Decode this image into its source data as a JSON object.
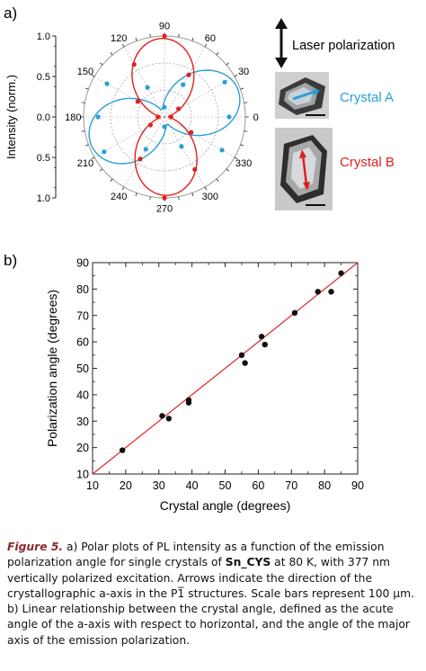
{
  "panel_a_label": "a)",
  "panel_b_label": "b)",
  "legend": {
    "polarization_label": "Laser polarization",
    "crystal_a_label": "Crystal A",
    "crystal_b_label": "Crystal B",
    "crystal_a_color": "#2a9fd6",
    "crystal_b_color": "#e02020"
  },
  "caption": {
    "figure_label": "Figure 5.",
    "text_1": " a) Polar plots of PL intensity as a function of the emission polarization angle for single crystals of ",
    "compound": "Sn_CYS",
    "text_2": " at 80 K, with 377 nm vertically polarized excitation. Arrows indicate the direction of the crystallographic a-axis in the P1̅ structures. Scale bars represent 100 μm. b) Linear relationship between the crystal angle, defined as the acute angle of the a-axis with respect to horizontal, and the angle of the major axis of the emission polarization."
  },
  "chart_data": [
    {
      "type": "polar",
      "ylabel": "Intensity (norm.)",
      "radial_ticks": [
        "1.0",
        "0.5",
        "0.0",
        "0.5",
        "1.0"
      ],
      "angle_ticks": [
        0,
        30,
        60,
        90,
        120,
        150,
        180,
        210,
        240,
        270,
        300,
        330
      ],
      "grid": true,
      "series": [
        {
          "name": "Crystal A",
          "color": "#2a9fd6",
          "points": [
            {
              "angle": 0,
              "r": 0.8
            },
            {
              "angle": 30,
              "r": 0.86
            },
            {
              "angle": 60,
              "r": 0.46
            },
            {
              "angle": 90,
              "r": 0.12
            },
            {
              "angle": 120,
              "r": 0.42
            },
            {
              "angle": 150,
              "r": 0.82
            },
            {
              "angle": 180,
              "r": 0.82
            },
            {
              "angle": 210,
              "r": 0.86
            },
            {
              "angle": 240,
              "r": 0.46
            },
            {
              "angle": 270,
              "r": 0.12
            },
            {
              "angle": 300,
              "r": 0.42
            },
            {
              "angle": 330,
              "r": 0.82
            }
          ],
          "fit_axis_deg": 20,
          "fit_min": 0.1
        },
        {
          "name": "Crystal B",
          "color": "#e02020",
          "points": [
            {
              "angle": 0,
              "r": 0.08
            },
            {
              "angle": 30,
              "r": 0.2
            },
            {
              "angle": 60,
              "r": 0.6
            },
            {
              "angle": 90,
              "r": 1.0
            },
            {
              "angle": 120,
              "r": 0.75
            },
            {
              "angle": 150,
              "r": 0.38
            },
            {
              "angle": 180,
              "r": 0.08
            },
            {
              "angle": 210,
              "r": 0.2
            },
            {
              "angle": 240,
              "r": 0.6
            },
            {
              "angle": 270,
              "r": 1.0
            },
            {
              "angle": 300,
              "r": 0.75
            },
            {
              "angle": 330,
              "r": 0.38
            }
          ],
          "fit_axis_deg": 92,
          "fit_min": 0.05
        }
      ]
    },
    {
      "type": "scatter",
      "xlabel": "Crystal angle (degrees)",
      "ylabel": "Polarization angle (degrees)",
      "xlim": [
        10,
        90
      ],
      "ylim": [
        10,
        90
      ],
      "xticks": [
        10,
        20,
        30,
        40,
        50,
        60,
        70,
        80,
        90
      ],
      "yticks": [
        10,
        20,
        30,
        40,
        50,
        60,
        70,
        80,
        90
      ],
      "fit_line": {
        "color": "#e02020",
        "from": [
          10,
          10
        ],
        "to": [
          90,
          90
        ]
      },
      "points": [
        {
          "x": 19,
          "y": 19
        },
        {
          "x": 31,
          "y": 32
        },
        {
          "x": 33,
          "y": 31
        },
        {
          "x": 39,
          "y": 37
        },
        {
          "x": 39,
          "y": 38
        },
        {
          "x": 55,
          "y": 55
        },
        {
          "x": 56,
          "y": 52
        },
        {
          "x": 61,
          "y": 62
        },
        {
          "x": 62,
          "y": 59
        },
        {
          "x": 71,
          "y": 71
        },
        {
          "x": 78,
          "y": 79
        },
        {
          "x": 82,
          "y": 79
        },
        {
          "x": 85,
          "y": 86
        }
      ]
    }
  ]
}
